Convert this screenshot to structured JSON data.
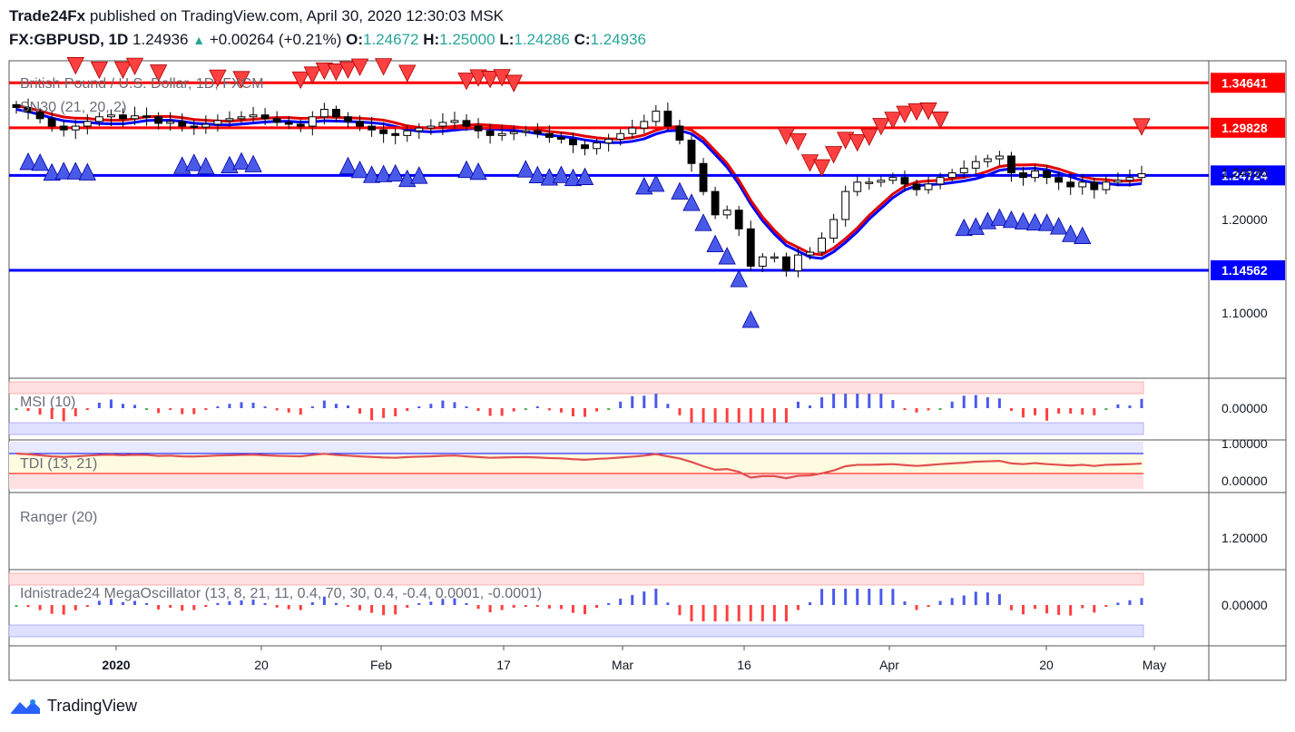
{
  "header": {
    "publisher": "Trade24Fx",
    "published_text": "published on TradingView.com, April 30, 2020 12:30:03 MSK",
    "symbol": "FX:GBPUSD, 1D",
    "last": "1.24936",
    "change": "+0.00264 (+0.21%)",
    "o_label": "O:",
    "o": "1.24672",
    "h_label": "H:",
    "h": "1.25000",
    "l_label": "L:",
    "l": "1.24286",
    "c_label": "C:",
    "c": "1.24936"
  },
  "colors": {
    "red": "#ff0000",
    "blue": "#0000ff",
    "bull": "#ffffff",
    "bear": "#000000",
    "up_text": "#26a69a"
  },
  "chart_data": {
    "type": "candlestick",
    "main": {
      "title": "British Pound / U.S. Dollar, 1D, FXCM",
      "indicator": "SN30 (21, 20, 2)",
      "y_ticks": [
        "1.20000",
        "1.10000"
      ],
      "y_range": [
        1.03,
        1.37
      ],
      "hlines": [
        {
          "value": 1.34641,
          "label": "1.34641",
          "color": "#ff0000"
        },
        {
          "value": 1.29828,
          "label": "1.29828",
          "color": "#ff0000"
        },
        {
          "value": 1.24724,
          "label": "1.24724",
          "color": "#0000ff"
        },
        {
          "value": 1.14562,
          "label": "1.14562",
          "color": "#0000ff"
        }
      ],
      "last_price_label": "1.24936",
      "closes": [
        1.32,
        1.315,
        1.308,
        1.3,
        1.296,
        1.3,
        1.305,
        1.31,
        1.312,
        1.308,
        1.311,
        1.31,
        1.303,
        1.305,
        1.3,
        1.299,
        1.302,
        1.306,
        1.308,
        1.31,
        1.312,
        1.308,
        1.304,
        1.302,
        1.3,
        1.31,
        1.318,
        1.31,
        1.305,
        1.3,
        1.296,
        1.292,
        1.29,
        1.295,
        1.298,
        1.3,
        1.304,
        1.306,
        1.3,
        1.295,
        1.29,
        1.292,
        1.294,
        1.295,
        1.292,
        1.288,
        1.286,
        1.28,
        1.276,
        1.282,
        1.286,
        1.292,
        1.298,
        1.305,
        1.316,
        1.3,
        1.285,
        1.26,
        1.23,
        1.205,
        1.21,
        1.19,
        1.15,
        1.16,
        1.16,
        1.145,
        1.162,
        1.165,
        1.18,
        1.2,
        1.23,
        1.24,
        1.24,
        1.242,
        1.245,
        1.238,
        1.232,
        1.238,
        1.245,
        1.25,
        1.255,
        1.262,
        1.265,
        1.268,
        1.25,
        1.245,
        1.252,
        1.245,
        1.24,
        1.235,
        1.24,
        1.232,
        1.24,
        1.242,
        1.245,
        1.249
      ]
    },
    "msi": {
      "name": "MSI (10)",
      "y_ticks": [
        "0.00000"
      ]
    },
    "tdi": {
      "name": "TDI (13, 21)",
      "y_ticks": [
        "1.00000",
        "0.00000"
      ]
    },
    "ranger": {
      "name": "Ranger (20)",
      "y_ticks": [
        "1.20000"
      ]
    },
    "mega": {
      "name": "Idnistrade24 MegaOscillator (13, 8, 21, 11, 0.4, 70, 30, 0.4, -0.4, 0.0001, -0.0001)",
      "y_ticks": [
        "0.00000"
      ]
    },
    "x_ticks": [
      "2020",
      "20",
      "Feb",
      "17",
      "Mar",
      "16",
      "Apr",
      "20",
      "May"
    ]
  },
  "footer": {
    "brand": "TradingView"
  }
}
